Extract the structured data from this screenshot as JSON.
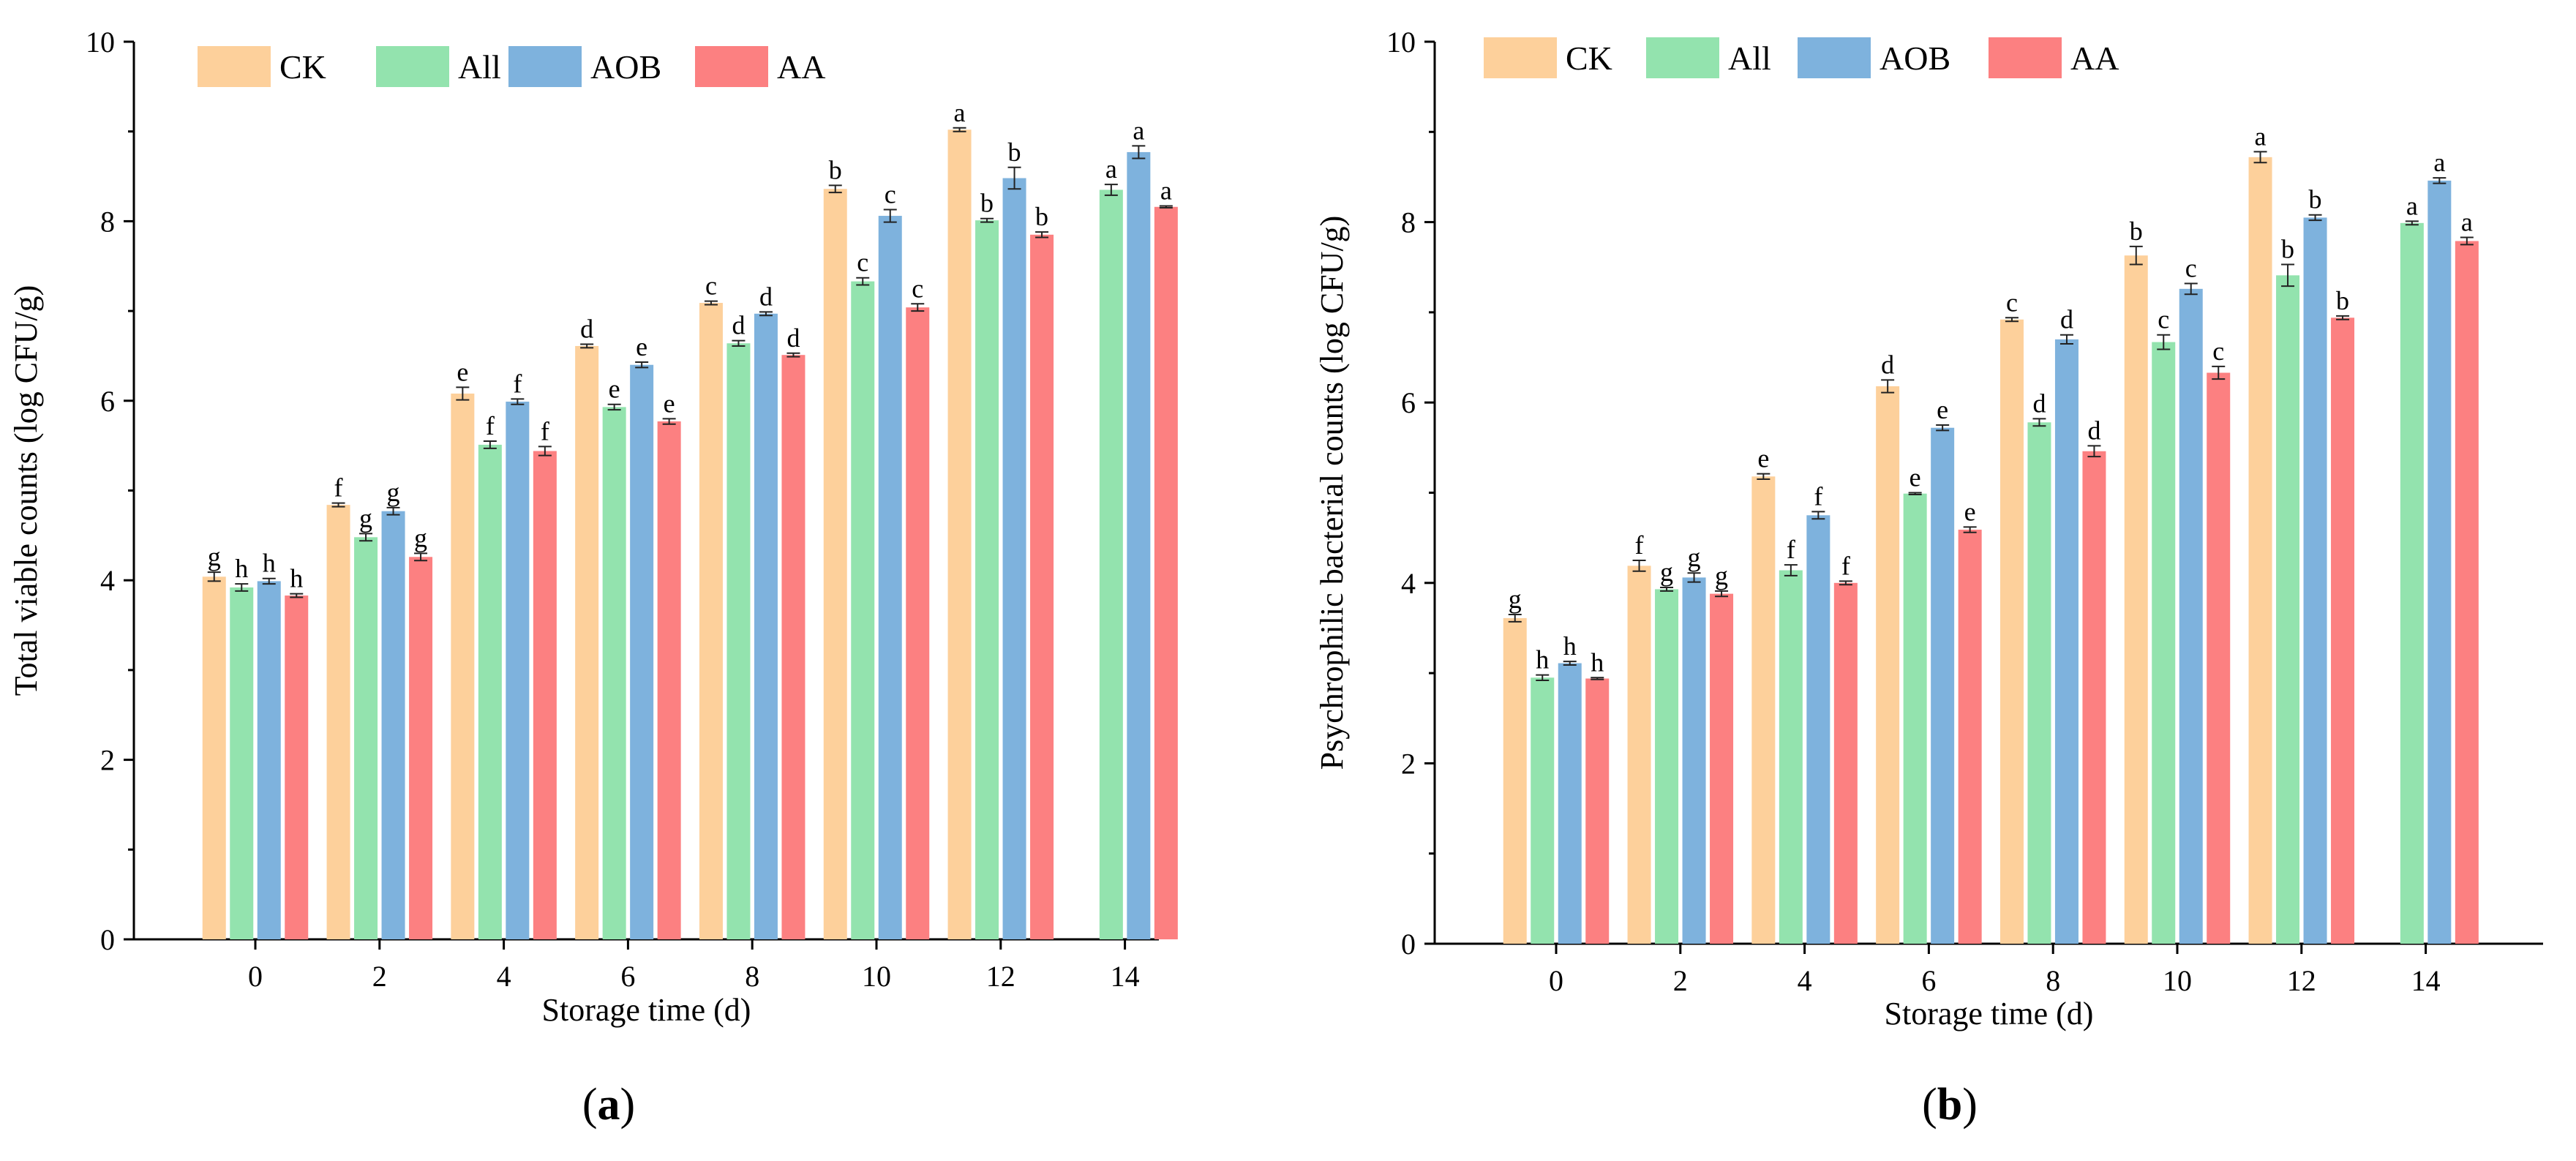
{
  "colors": {
    "CK": "#fdd09b",
    "All": "#93e3ae",
    "AOB": "#7eb2dd",
    "AA": "#fc8081",
    "axis": "#000000",
    "error_bar": "#222222"
  },
  "chart_data": [
    {
      "type": "bar",
      "panel_label_open": "(",
      "panel_label_letter": "a",
      "panel_label_close": ")",
      "xlabel": "Storage time (d)",
      "ylabel": "Total viable counts (log CFU/g)",
      "ylim": [
        0,
        10
      ],
      "yticks": [
        "0",
        "2",
        "4",
        "6",
        "8",
        "10"
      ],
      "categories": [
        "0",
        "2",
        "4",
        "6",
        "8",
        "10",
        "12",
        "14"
      ],
      "legend_position": "top-left",
      "series": [
        {
          "name": "CK",
          "values": [
            4.04,
            4.84,
            6.08,
            6.61,
            7.09,
            8.36,
            9.02,
            null
          ],
          "errors": [
            0.05,
            0.02,
            0.07,
            0.02,
            0.02,
            0.04,
            0.02,
            null
          ],
          "letters": [
            "g",
            "f",
            "e",
            "d",
            "c",
            "b",
            "a",
            ""
          ]
        },
        {
          "name": "All",
          "values": [
            3.92,
            4.48,
            5.51,
            5.93,
            6.64,
            7.33,
            8.01,
            8.35
          ],
          "errors": [
            0.04,
            0.04,
            0.04,
            0.03,
            0.03,
            0.04,
            0.02,
            0.06
          ],
          "letters": [
            "h",
            "g",
            "f",
            "e",
            "d",
            "c",
            "b",
            "a"
          ]
        },
        {
          "name": "AOB",
          "values": [
            3.99,
            4.77,
            5.99,
            6.4,
            6.97,
            8.06,
            8.48,
            8.77
          ],
          "errors": [
            0.03,
            0.04,
            0.03,
            0.03,
            0.02,
            0.07,
            0.12,
            0.07
          ],
          "letters": [
            "h",
            "g",
            "f",
            "e",
            "d",
            "c",
            "b",
            "a"
          ]
        },
        {
          "name": "AA",
          "values": [
            3.83,
            4.26,
            5.44,
            5.77,
            6.51,
            7.04,
            7.85,
            8.16
          ],
          "errors": [
            0.02,
            0.04,
            0.05,
            0.03,
            0.02,
            0.04,
            0.03,
            0.01
          ],
          "letters": [
            "h",
            "g",
            "f",
            "e",
            "d",
            "c",
            "b",
            "a"
          ]
        }
      ]
    },
    {
      "type": "bar",
      "panel_label_open": "(",
      "panel_label_letter": "b",
      "panel_label_close": ")",
      "xlabel": "Storage time (d)",
      "ylabel": "Psychrophilic bacterial counts (log CFU/g)",
      "ylim": [
        0,
        10
      ],
      "yticks": [
        "0",
        "2",
        "4",
        "6",
        "8",
        "10"
      ],
      "categories": [
        "0",
        "2",
        "4",
        "6",
        "8",
        "10",
        "12",
        "14"
      ],
      "legend_position": "top-left",
      "series": [
        {
          "name": "CK",
          "values": [
            3.61,
            4.19,
            5.18,
            6.18,
            6.92,
            7.63,
            8.72,
            null
          ],
          "errors": [
            0.04,
            0.06,
            0.03,
            0.07,
            0.02,
            0.1,
            0.06,
            null
          ],
          "letters": [
            "g",
            "f",
            "e",
            "d",
            "c",
            "b",
            "a",
            ""
          ]
        },
        {
          "name": "All",
          "values": [
            2.95,
            3.93,
            4.14,
            4.99,
            5.78,
            6.67,
            7.41,
            7.99
          ],
          "errors": [
            0.03,
            0.02,
            0.06,
            0.01,
            0.04,
            0.08,
            0.12,
            0.02
          ],
          "letters": [
            "h",
            "g",
            "f",
            "e",
            "d",
            "c",
            "b",
            "a"
          ]
        },
        {
          "name": "AOB",
          "values": [
            3.11,
            4.06,
            4.75,
            5.72,
            6.7,
            7.26,
            8.05,
            8.46
          ],
          "errors": [
            0.02,
            0.05,
            0.04,
            0.03,
            0.05,
            0.06,
            0.03,
            0.03
          ],
          "letters": [
            "h",
            "g",
            "f",
            "e",
            "d",
            "c",
            "b",
            "a"
          ]
        },
        {
          "name": "AA",
          "values": [
            2.94,
            3.88,
            4.0,
            4.59,
            5.46,
            6.33,
            6.94,
            7.79
          ],
          "errors": [
            0.01,
            0.03,
            0.02,
            0.03,
            0.06,
            0.07,
            0.02,
            0.04
          ],
          "letters": [
            "h",
            "g",
            "f",
            "e",
            "d",
            "c",
            "b",
            "a"
          ]
        }
      ]
    }
  ]
}
